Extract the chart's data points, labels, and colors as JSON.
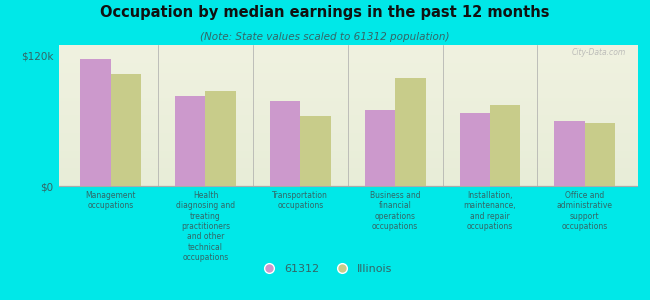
{
  "title": "Occupation by median earnings in the past 12 months",
  "subtitle": "(Note: State values scaled to 61312 population)",
  "background_color": "#00e8e8",
  "plot_bg_color_top": "#f0f2e0",
  "plot_bg_color_bottom": "#e8edd8",
  "categories": [
    "Management\noccupations",
    "Health\ndiagnosing and\ntreating\npractitioners\nand other\ntechnical\noccupations",
    "Transportation\noccupations",
    "Business and\nfinancial\noperations\noccupations",
    "Installation,\nmaintenance,\nand repair\noccupations",
    "Office and\nadministrative\nsupport\noccupations"
  ],
  "values_61312": [
    117000,
    83000,
    78000,
    70000,
    67000,
    60000
  ],
  "values_illinois": [
    103000,
    88000,
    65000,
    100000,
    75000,
    58000
  ],
  "color_61312": "#cc99cc",
  "color_illinois": "#c8cc8a",
  "ylim": [
    0,
    130000
  ],
  "yticks": [
    0,
    120000
  ],
  "ytick_labels": [
    "$0",
    "$120k"
  ],
  "legend_label_61312": "61312",
  "legend_label_illinois": "Illinois",
  "watermark": "City-Data.com",
  "text_color": "#336666",
  "title_color": "#111111"
}
